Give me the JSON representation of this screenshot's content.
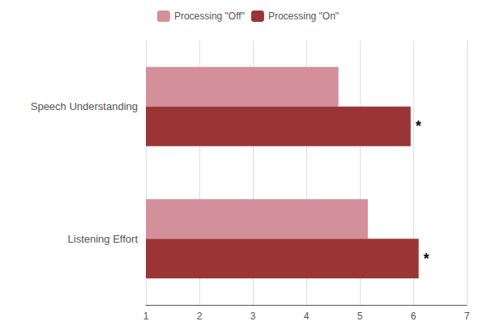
{
  "chart_data": {
    "type": "bar",
    "orientation": "horizontal",
    "categories": [
      "Speech Understanding",
      "Listening Effort"
    ],
    "series": [
      {
        "name": "Processing \"Off\"",
        "color": "#d4909a",
        "values": [
          4.6,
          5.15
        ]
      },
      {
        "name": "Processing \"On\"",
        "color": "#9b3535",
        "values": [
          5.95,
          6.1
        ]
      }
    ],
    "xlim": [
      1,
      7
    ],
    "xticks": [
      1,
      2,
      3,
      4,
      5,
      6,
      7
    ],
    "grid": true,
    "legend": "top",
    "annotations": [
      {
        "text": "*",
        "series": "Processing \"On\"",
        "category": "Speech Understanding",
        "color": "#111111"
      },
      {
        "text": "*",
        "series": "Processing \"On\"",
        "category": "Listening Effort",
        "color": "#111111"
      }
    ]
  }
}
